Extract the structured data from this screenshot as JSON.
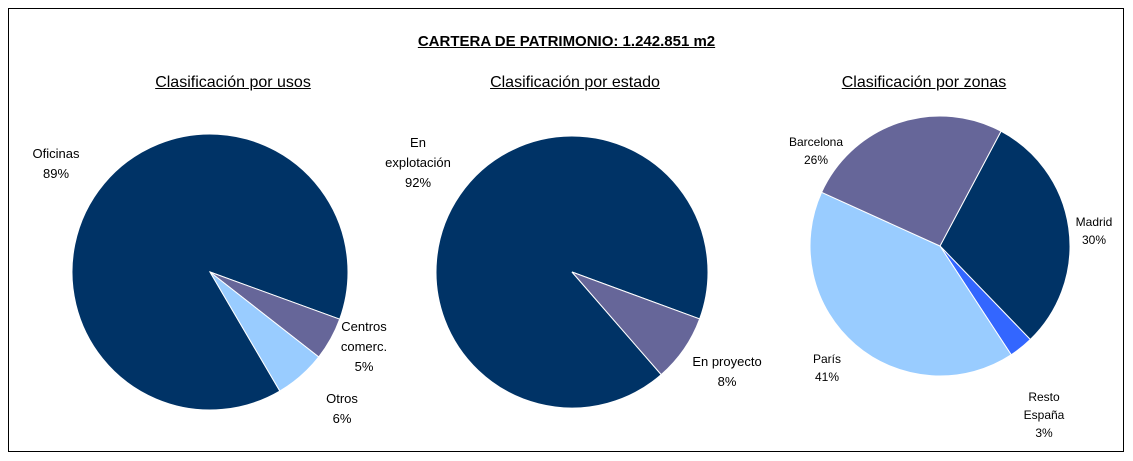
{
  "title": "CARTERA DE PATRIMONIO: 1.242.851 m2",
  "chart_data": [
    {
      "type": "pie",
      "title": "Clasificación por usos",
      "categories": [
        "Oficinas",
        "Centros comerc.",
        "Otros"
      ],
      "values": [
        89,
        5,
        6
      ],
      "value_labels": [
        "89%",
        "5%",
        "6%"
      ],
      "colors": [
        "#003366",
        "#666699",
        "#99ccff"
      ]
    },
    {
      "type": "pie",
      "title": "Clasificación por estado",
      "categories": [
        "En explotación",
        "En proyecto"
      ],
      "values": [
        92,
        8
      ],
      "value_labels": [
        "92%",
        "8%"
      ],
      "colors": [
        "#003366",
        "#666699"
      ]
    },
    {
      "type": "pie",
      "title": "Clasificación por zonas",
      "categories": [
        "Madrid",
        "Resto España",
        "París",
        "Barcelona"
      ],
      "values": [
        30,
        3,
        41,
        26
      ],
      "value_labels": [
        "30%",
        "3%",
        "41%",
        "26%"
      ],
      "colors": [
        "#003366",
        "#3366ff",
        "#99ccff",
        "#666699"
      ]
    }
  ]
}
